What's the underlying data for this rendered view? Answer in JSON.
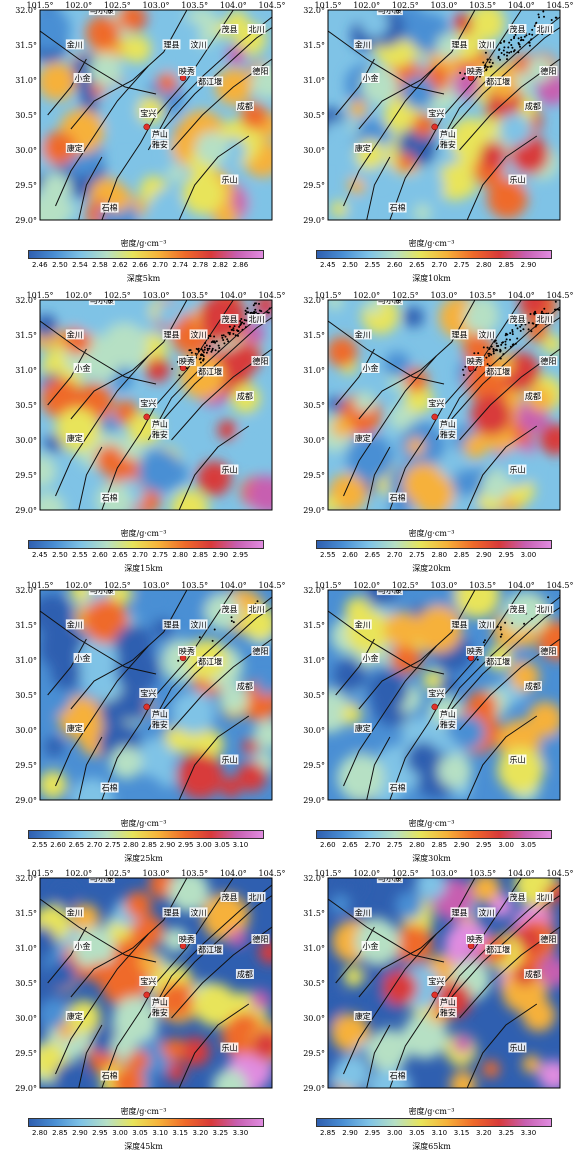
{
  "x_ticks": [
    "101.5°",
    "102.0°",
    "102.5°",
    "103.0°",
    "103.5°",
    "104.0°",
    "104.5°"
  ],
  "y_ticks": [
    "32.0°",
    "31.5°",
    "31.0°",
    "30.5°",
    "30.0°",
    "29.5°",
    "29.0°"
  ],
  "density_label": "密度/g·cm⁻³",
  "places": [
    "马尔康",
    "金川",
    "理县",
    "茂县",
    "北川",
    "汶川",
    "德阳",
    "小金",
    "映秀",
    "都江堰",
    "成都",
    "宝兴",
    "芦山",
    "雅安",
    "康定",
    "乐山",
    "石棉"
  ],
  "panels": [
    {
      "depth": "深度5km",
      "ticks": [
        "2.46",
        "2.50",
        "2.54",
        "2.58",
        "2.62",
        "2.66",
        "2.70",
        "2.74",
        "2.78",
        "2.82",
        "2.86"
      ],
      "colorbar": "#2f5fb0,#4a8fd4,#7fc3e6,#b6e0c4,#e8e45a,#f6b13a,#ef6a2a,#d83a3a,#c75fb0,#e08ce0"
    },
    {
      "depth": "深度10km",
      "ticks": [
        "2.45",
        "2.50",
        "2.55",
        "2.60",
        "2.65",
        "2.70",
        "2.75",
        "2.80",
        "2.85",
        "2.90"
      ],
      "colorbar": "#2f5fb0,#4a8fd4,#7fc3e6,#b6e0c4,#e8e45a,#f6b13a,#ef6a2a,#d83a3a,#c75fb0,#e08ce0"
    },
    {
      "depth": "深度15km",
      "ticks": [
        "2.45",
        "2.50",
        "2.55",
        "2.60",
        "2.65",
        "2.70",
        "2.75",
        "2.80",
        "2.85",
        "2.90",
        "2.95"
      ],
      "colorbar": "#2f5fb0,#4a8fd4,#7fc3e6,#b6e0c4,#e8e45a,#f6b13a,#ef6a2a,#d83a3a,#c75fb0,#e08ce0"
    },
    {
      "depth": "深度20km",
      "ticks": [
        "2.55",
        "2.60",
        "2.65",
        "2.70",
        "2.75",
        "2.80",
        "2.85",
        "2.90",
        "2.95",
        "3.00"
      ],
      "colorbar": "#2f5fb0,#4a8fd4,#7fc3e6,#b6e0c4,#e8e45a,#f6b13a,#ef6a2a,#d83a3a,#c75fb0,#e08ce0"
    },
    {
      "depth": "深度25km",
      "ticks": [
        "2.55",
        "2.60",
        "2.65",
        "2.70",
        "2.75",
        "2.80",
        "2.85",
        "2.90",
        "2.95",
        "3.00",
        "3.05",
        "3.10"
      ],
      "colorbar": "#2f5fb0,#4a8fd4,#7fc3e6,#b6e0c4,#e8e45a,#f6b13a,#ef6a2a,#d83a3a,#c75fb0,#e08ce0"
    },
    {
      "depth": "深度30km",
      "ticks": [
        "2.60",
        "2.65",
        "2.70",
        "2.75",
        "2.80",
        "2.85",
        "2.90",
        "2.95",
        "3.00",
        "3.05"
      ],
      "colorbar": "#2f5fb0,#4a8fd4,#7fc3e6,#b6e0c4,#e8e45a,#f6b13a,#ef6a2a,#d83a3a,#c75fb0,#e08ce0"
    },
    {
      "depth": "深度45km",
      "ticks": [
        "2.80",
        "2.85",
        "2.90",
        "2.95",
        "3.00",
        "3.05",
        "3.10",
        "3.15",
        "3.20",
        "3.25",
        "3.30"
      ],
      "colorbar": "#2f5fb0,#4a8fd4,#7fc3e6,#b6e0c4,#e8e45a,#f6b13a,#ef6a2a,#d83a3a,#c75fb0,#e08ce0"
    },
    {
      "depth": "深度65km",
      "ticks": [
        "2.85",
        "2.90",
        "2.95",
        "3.00",
        "3.05",
        "3.10",
        "3.15",
        "3.20",
        "3.25",
        "3.30"
      ],
      "colorbar": "#2f5fb0,#4a8fd4,#7fc3e6,#b6e0c4,#e8e45a,#f6b13a,#ef6a2a,#d83a3a,#c75fb0,#e08ce0"
    }
  ]
}
